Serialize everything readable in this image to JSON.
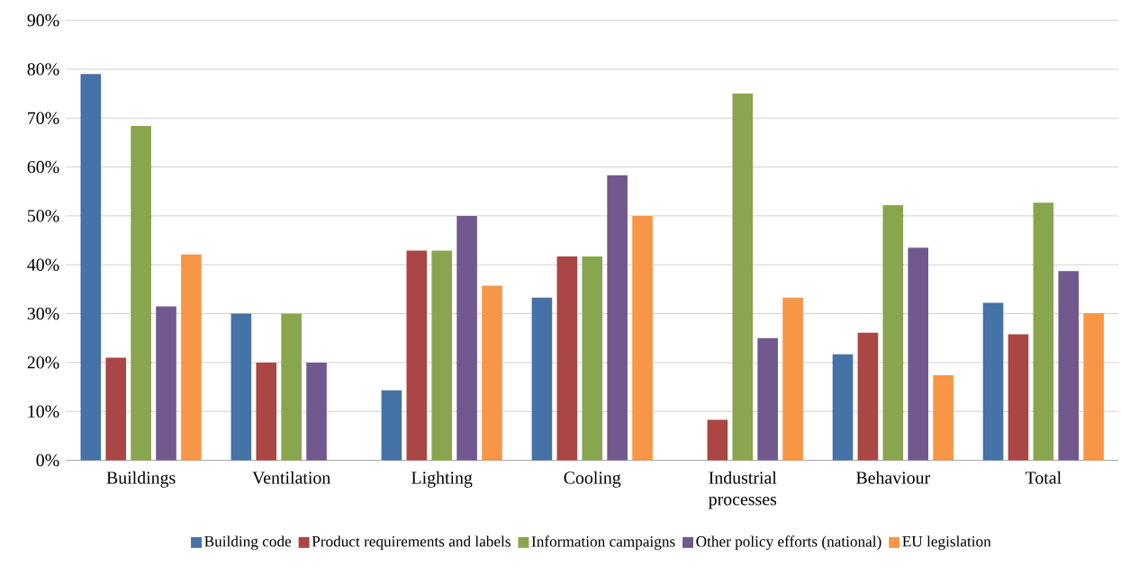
{
  "chart_data": {
    "type": "bar",
    "categories": [
      "Buildings",
      "Ventilation",
      "Lighting",
      "Cooling",
      "Industrial processes",
      "Behaviour",
      "Total"
    ],
    "series": [
      {
        "name": "Building code",
        "color": "#4572a7",
        "values": [
          79.0,
          30.0,
          14.3,
          33.3,
          0,
          21.7,
          32.2
        ]
      },
      {
        "name": "Product requirements and labels",
        "color": "#aa4643",
        "values": [
          21.0,
          20.0,
          42.9,
          41.7,
          8.3,
          26.1,
          25.8
        ]
      },
      {
        "name": "Information campaigns",
        "color": "#89a54e",
        "values": [
          68.4,
          30.0,
          42.9,
          41.7,
          75.0,
          52.2,
          52.7
        ]
      },
      {
        "name": "Other policy efforts (national)",
        "color": "#71588f",
        "values": [
          31.5,
          20.0,
          50.0,
          58.3,
          25.0,
          43.5,
          38.7
        ]
      },
      {
        "name": "EU legislation",
        "color": "#f79646",
        "values": [
          42.1,
          0,
          35.7,
          50.0,
          33.3,
          17.4,
          30.1
        ]
      }
    ],
    "ylim": [
      0,
      90
    ],
    "yticks": [
      {
        "value": 0,
        "label": "0%"
      },
      {
        "value": 10,
        "label": "10%"
      },
      {
        "value": 20,
        "label": "20%"
      },
      {
        "value": 30,
        "label": "30%"
      },
      {
        "value": 40,
        "label": "40%"
      },
      {
        "value": 50,
        "label": "50%"
      },
      {
        "value": 60,
        "label": "60%"
      },
      {
        "value": 70,
        "label": "70%"
      },
      {
        "value": 80,
        "label": "80%"
      },
      {
        "value": 90,
        "label": "90%"
      }
    ],
    "grid": "y",
    "legend": "bottom"
  }
}
